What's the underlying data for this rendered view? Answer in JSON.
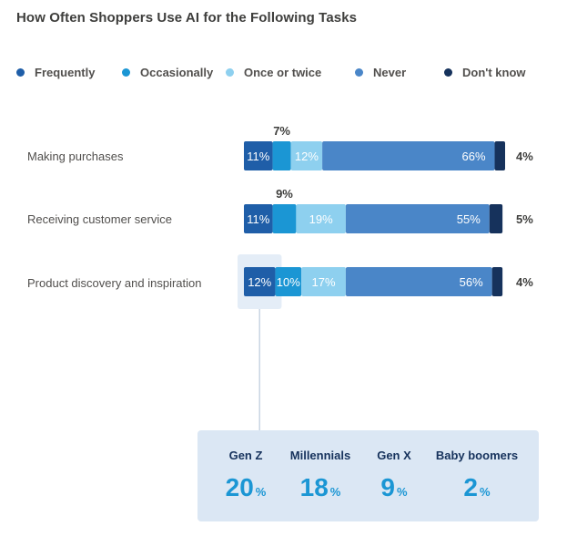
{
  "title": "How Often Shoppers Use AI for the Following Tasks",
  "colors": {
    "frequently": "#1f5ea8",
    "occasionally": "#1b96d4",
    "once_or_twice": "#8ed0ef",
    "never": "#4a86c8",
    "dont_know": "#16325c",
    "highlight": "#e4edf7",
    "connector": "#c9d5e3",
    "box": "#dbe7f4"
  },
  "legend": [
    {
      "label": "Frequently",
      "color_key": "frequently"
    },
    {
      "label": "Occasionally",
      "color_key": "occasionally"
    },
    {
      "label": "Once or twice",
      "color_key": "once_or_twice"
    },
    {
      "label": "Never",
      "color_key": "never"
    },
    {
      "label": "Don't know",
      "color_key": "dont_know"
    }
  ],
  "chart_data": {
    "type": "bar",
    "orientation": "horizontal",
    "stacked": true,
    "title": "How Often Shoppers Use AI for the Following Tasks",
    "categories": [
      "Making purchases",
      "Receiving customer service",
      "Product discovery and inspiration"
    ],
    "series": [
      {
        "name": "Frequently",
        "values": [
          11,
          11,
          12
        ],
        "labels": [
          "11%",
          "11%",
          "12%"
        ]
      },
      {
        "name": "Occasionally",
        "values": [
          7,
          9,
          10
        ],
        "labels": [
          "7%",
          "9%",
          "10%"
        ]
      },
      {
        "name": "Once or twice",
        "values": [
          12,
          19,
          17
        ],
        "labels": [
          "12%",
          "19%",
          "17%"
        ]
      },
      {
        "name": "Never",
        "values": [
          66,
          55,
          56
        ],
        "labels": [
          "66%",
          "55%",
          "56%"
        ]
      },
      {
        "name": "Don't know",
        "values": [
          4,
          5,
          4
        ],
        "labels": [
          "4%",
          "5%",
          "4%"
        ]
      }
    ],
    "xlim": [
      0,
      100
    ],
    "highlight": {
      "category": "Product discovery and inspiration",
      "series": "Frequently"
    }
  },
  "generations": {
    "items": [
      {
        "label": "Gen Z",
        "value": "20",
        "unit": "%"
      },
      {
        "label": "Millennials",
        "value": "18",
        "unit": "%"
      },
      {
        "label": "Gen X",
        "value": "9",
        "unit": "%"
      },
      {
        "label": "Baby boomers",
        "value": "2",
        "unit": "%"
      }
    ]
  }
}
